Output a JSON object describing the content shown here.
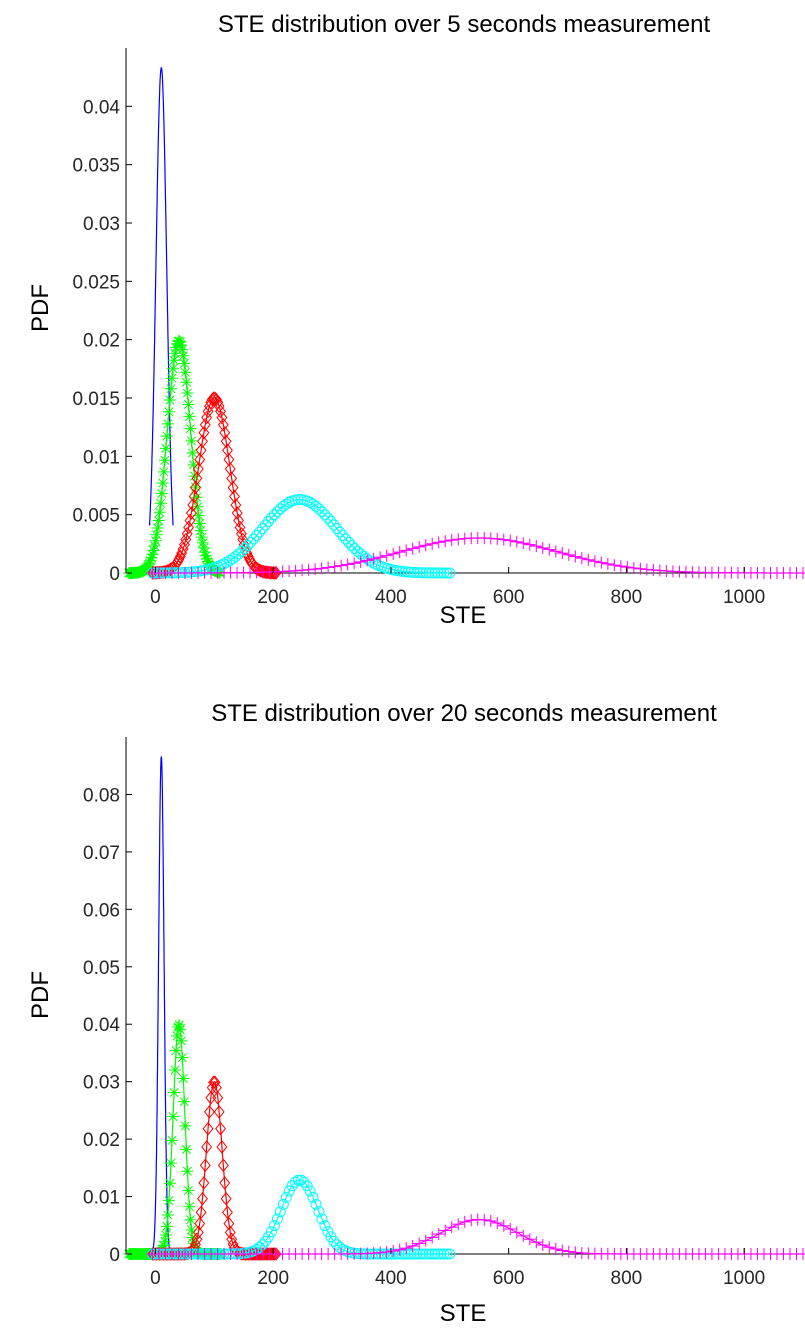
{
  "chart_data": [
    {
      "type": "line",
      "title": "STE distribution over 5 seconds measurement",
      "xlabel": "STE",
      "ylabel": "PDF",
      "xlim": [
        -50,
        1100
      ],
      "ylim": [
        0,
        0.045
      ],
      "xticks": [
        0,
        200,
        400,
        600,
        800,
        1000
      ],
      "xtick_labels": [
        "0",
        "200",
        "400",
        "600",
        "800",
        "1000"
      ],
      "yticks": [
        0,
        0.005,
        0.01,
        0.015,
        0.02,
        0.025,
        0.03,
        0.035,
        0.04
      ],
      "ytick_labels": [
        "0",
        "0.005",
        "0.01",
        "0.015",
        "0.02",
        "0.025",
        "0.03",
        "0.035",
        "0.04"
      ],
      "grid": false,
      "series": [
        {
          "color": "#0000ff",
          "marker": "none",
          "mu": 10,
          "sigma": 9.2,
          "xmin": -10,
          "xmax": 30,
          "peak": 0.0433
        },
        {
          "color": "#00ff00",
          "marker": "asterisk",
          "mu": 40,
          "sigma": 20,
          "xmin": -45,
          "xmax": 110,
          "peak": 0.0199
        },
        {
          "color": "#ff0000",
          "marker": "diamond",
          "mu": 100,
          "sigma": 26.6,
          "xmin": -5,
          "xmax": 205,
          "peak": 0.015
        },
        {
          "color": "#00ffff",
          "marker": "circle",
          "mu": 245,
          "sigma": 63,
          "xmin": -5,
          "xmax": 500,
          "peak": 0.0063
        },
        {
          "color": "#ff00ff",
          "marker": "plus",
          "mu": 550,
          "sigma": 133,
          "xmin": -5,
          "xmax": 1100,
          "peak": 0.003
        }
      ]
    },
    {
      "type": "line",
      "title": "STE distribution over 20 seconds measurement",
      "xlabel": "STE",
      "ylabel": "PDF",
      "xlim": [
        -50,
        1100
      ],
      "ylim": [
        0,
        0.09
      ],
      "xticks": [
        0,
        200,
        400,
        600,
        800,
        1000
      ],
      "xtick_labels": [
        "0",
        "200",
        "400",
        "600",
        "800",
        "1000"
      ],
      "yticks": [
        0,
        0.01,
        0.02,
        0.03,
        0.04,
        0.05,
        0.06,
        0.07,
        0.08
      ],
      "ytick_labels": [
        "0",
        "0.01",
        "0.02",
        "0.03",
        "0.04",
        "0.05",
        "0.06",
        "0.07",
        "0.08"
      ],
      "grid": false,
      "series": [
        {
          "color": "#0000ff",
          "marker": "none",
          "mu": 10,
          "sigma": 4.6,
          "xmin": -10,
          "xmax": 30,
          "peak": 0.0866
        },
        {
          "color": "#00ff00",
          "marker": "asterisk",
          "mu": 40,
          "sigma": 10,
          "xmin": -45,
          "xmax": 110,
          "peak": 0.0399
        },
        {
          "color": "#ff0000",
          "marker": "diamond",
          "mu": 100,
          "sigma": 13.3,
          "xmin": -5,
          "xmax": 205,
          "peak": 0.03
        },
        {
          "color": "#00ffff",
          "marker": "circle",
          "mu": 245,
          "sigma": 31,
          "xmin": -5,
          "xmax": 500,
          "peak": 0.0129
        },
        {
          "color": "#ff00ff",
          "marker": "plus",
          "mu": 550,
          "sigma": 66,
          "xmin": -5,
          "xmax": 1100,
          "peak": 0.006
        }
      ]
    }
  ]
}
